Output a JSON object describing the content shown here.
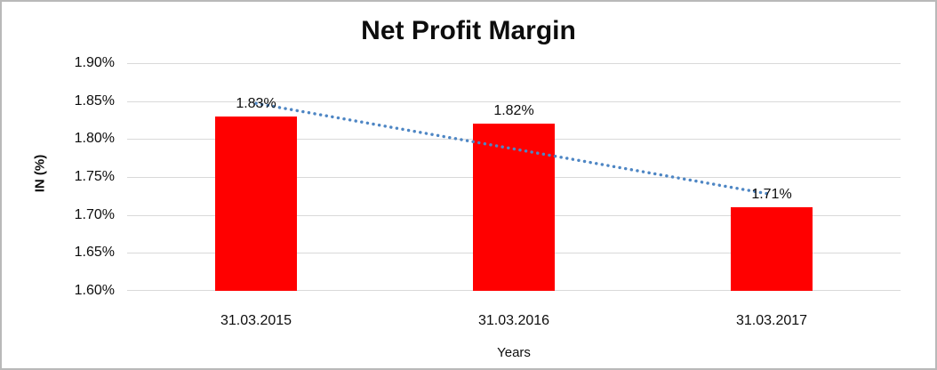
{
  "window": {
    "background": "#FFFFFF",
    "border_color": "#B9B9B9"
  },
  "chart_data": {
    "type": "bar",
    "title": "Net Profit Margin",
    "categories": [
      "31.03.2015",
      "31.03.2016",
      "31.03.2017"
    ],
    "values": [
      1.83,
      1.82,
      1.71
    ],
    "data_labels": [
      "1.83%",
      "1.82%",
      "1.71%"
    ],
    "xlabel": "Years",
    "ylabel": "IN (%)",
    "ylim": [
      1.6,
      1.9
    ],
    "yticks": [
      1.9,
      1.85,
      1.8,
      1.75,
      1.7,
      1.65,
      1.6
    ],
    "ytick_labels": [
      "1.90%",
      "1.85%",
      "1.80%",
      "1.75%",
      "1.70%",
      "1.65%",
      "1.60%"
    ],
    "grid": true,
    "legend": "none",
    "bar_color": "#FF0000",
    "gridline_color": "#D9D9D9",
    "text_color": "#0D0D0D",
    "trendline": {
      "type": "linear",
      "style": "dotted",
      "color": "#4E86C4",
      "start_value": 1.847,
      "end_value": 1.727
    }
  }
}
